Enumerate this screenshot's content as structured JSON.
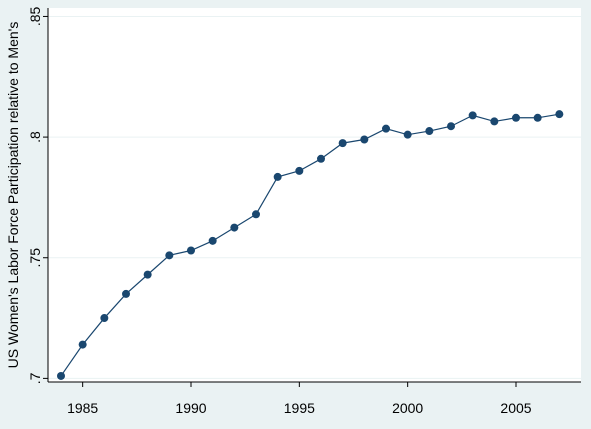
{
  "chart_data": {
    "type": "line",
    "title": "",
    "xlabel": "",
    "ylabel": "US Women's Labor Force Participation relative to Men's",
    "x": [
      1984,
      1985,
      1986,
      1987,
      1988,
      1989,
      1990,
      1991,
      1992,
      1993,
      1994,
      1995,
      1996,
      1997,
      1998,
      1999,
      2000,
      2001,
      2002,
      2003,
      2004,
      2005,
      2006,
      2007
    ],
    "series": [
      {
        "name": "",
        "values": [
          0.701,
          0.714,
          0.725,
          0.735,
          0.743,
          0.751,
          0.753,
          0.757,
          0.7625,
          0.768,
          0.7835,
          0.786,
          0.791,
          0.7975,
          0.799,
          0.8035,
          0.801,
          0.8025,
          0.8045,
          0.809,
          0.8065,
          0.808,
          0.808,
          0.8095
        ]
      }
    ],
    "xlim": [
      1983.4,
      2008.0
    ],
    "ylim": [
      0.6985,
      0.8535
    ],
    "xticks": [
      1985,
      1990,
      1995,
      2000,
      2005
    ],
    "xtick_labels": [
      "1985",
      "1990",
      "1995",
      "2000",
      "2005"
    ],
    "yticks": [
      0.7,
      0.75,
      0.8,
      0.85
    ],
    "ytick_labels": [
      ".7",
      ".75",
      ".8",
      ".85"
    ],
    "grid": "horizontal",
    "legend": "none",
    "colors": {
      "background": "#eaf2f3",
      "plot_area": "#ffffff",
      "grid": "#eaf2f3",
      "line": "#1a476f",
      "marker": "#1a476f"
    }
  }
}
